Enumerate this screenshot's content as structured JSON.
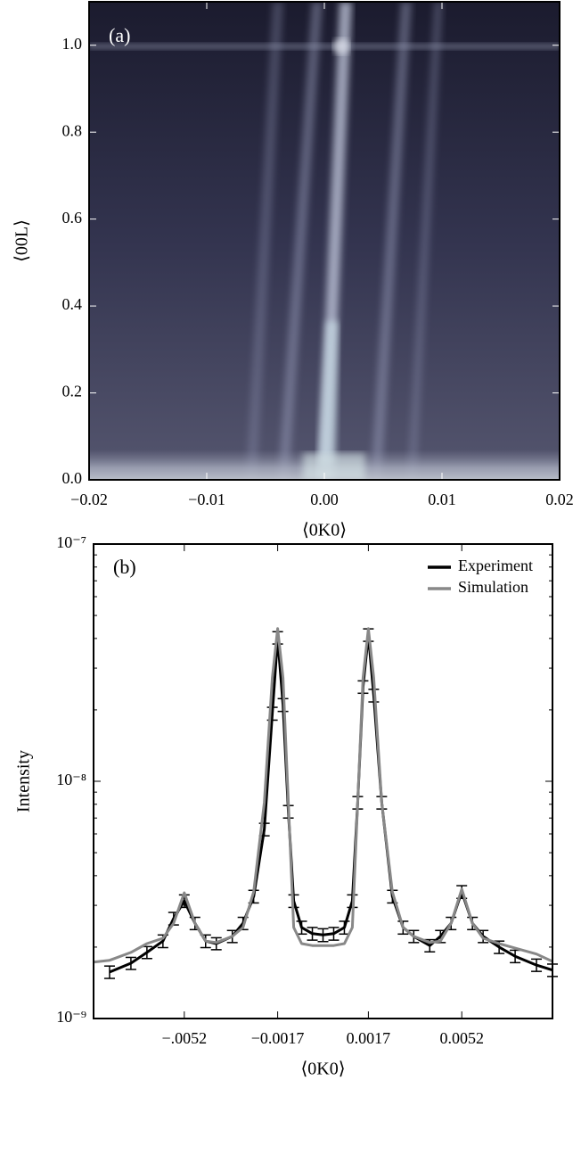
{
  "chart_data": [
    {
      "type": "image",
      "panel_label": "(a)",
      "xlabel": "⟨0K0⟩",
      "ylabel": "⟨00L⟩",
      "xlim": [
        -0.02,
        0.02
      ],
      "ylim": [
        0,
        1.1
      ],
      "xticks": [
        {
          "value": -0.02,
          "label": "−0.02"
        },
        {
          "value": -0.01,
          "label": "−0.01"
        },
        {
          "value": 0,
          "label": "0.00"
        },
        0.01,
        0.02
      ],
      "yticks": [
        {
          "value": 0,
          "label": "0.0"
        },
        0.2,
        0.4,
        0.6,
        0.8,
        {
          "value": 1,
          "label": "1.0"
        }
      ]
    },
    {
      "type": "line",
      "panel_label": "(b)",
      "xlabel": "⟨0K0⟩",
      "ylabel": "Intensity",
      "log_y": true,
      "legend": "upper right",
      "xlim": [
        -0.0086,
        0.0086
      ],
      "ylim": [
        1e-09,
        1e-07
      ],
      "xticks": [
        {
          "value": -0.0052,
          "label": "−.0052"
        },
        {
          "value": -0.0017,
          "label": "−0.0017"
        },
        0.0017,
        0.0052
      ],
      "yticks": [
        {
          "value": 1e-09,
          "label": "10⁻⁹"
        },
        {
          "value": 1e-08,
          "label": "10⁻⁸"
        },
        {
          "value": 1e-07,
          "label": "10⁻⁷"
        }
      ],
      "yminorticks": [
        2e-09,
        3e-09,
        4e-09,
        5e-09,
        6e-09,
        7e-09,
        8e-09,
        9e-09,
        2e-08,
        3e-08,
        4e-08,
        5e-08,
        6e-08,
        7e-08,
        8e-08,
        9e-08
      ],
      "series": [
        {
          "name": "Experiment",
          "color": "#000000",
          "x": [
            -0.008,
            -0.0072,
            -0.0066,
            -0.006,
            -0.0056,
            -0.0052,
            -0.0048,
            -0.0044,
            -0.004,
            -0.0034,
            -0.003,
            -0.0026,
            -0.0022,
            -0.0019,
            -0.0017,
            -0.0015,
            -0.0013,
            -0.0011,
            -0.0008,
            -0.0004,
            0,
            0.0004,
            0.0008,
            0.0011,
            0.0013,
            0.0015,
            0.0017,
            0.0019,
            0.0022,
            0.0026,
            0.003,
            0.0034,
            0.004,
            0.0044,
            0.0048,
            0.0052,
            0.0056,
            0.006,
            0.0066,
            0.0072,
            0.008,
            0.0086
          ],
          "values": [
            1.57e-09,
            1.71e-09,
            1.9e-09,
            2.12e-09,
            2.64e-09,
            3.13e-09,
            2.52e-09,
            2.12e-09,
            2.07e-09,
            2.22e-09,
            2.52e-09,
            3.27e-09,
            6.27e-09,
            1.93e-08,
            4.03e-08,
            2.1e-08,
            7.45e-09,
            3.13e-09,
            2.42e-09,
            2.28e-09,
            2.25e-09,
            2.28e-09,
            2.42e-09,
            3.13e-09,
            8.13e-09,
            2.5e-08,
            4.14e-08,
            2.3e-08,
            8.13e-09,
            3.27e-09,
            2.42e-09,
            2.22e-09,
            2.03e-09,
            2.22e-09,
            2.52e-09,
            3.42e-09,
            2.52e-09,
            2.22e-09,
            2e-09,
            1.83e-09,
            1.68e-09,
            1.6e-09
          ],
          "errors": [
            9.4e-11,
            1e-10,
            1.1e-10,
            1.3e-10,
            1.6e-10,
            1.9e-10,
            1.5e-10,
            1.3e-10,
            1.2e-10,
            1.3e-10,
            1.5e-10,
            2e-10,
            3.8e-10,
            1.2e-09,
            2.4e-09,
            1.3e-09,
            4.5e-10,
            1.9e-10,
            1.5e-10,
            1.4e-10,
            1.4e-10,
            1.4e-10,
            1.5e-10,
            1.9e-10,
            4.9e-10,
            1.5e-09,
            2.5e-09,
            1.4e-09,
            4.9e-10,
            2e-10,
            1.5e-10,
            1.3e-10,
            1.2e-10,
            1.3e-10,
            1.5e-10,
            2.1e-10,
            1.5e-10,
            1.3e-10,
            1.2e-10,
            1.1e-10,
            1e-10,
            9.6e-11
          ]
        },
        {
          "name": "Simulation",
          "color": "#888888",
          "x": [
            -0.0086,
            -0.008,
            -0.0072,
            -0.0066,
            -0.006,
            -0.0056,
            -0.0052,
            -0.0048,
            -0.0044,
            -0.004,
            -0.0034,
            -0.003,
            -0.0026,
            -0.0022,
            -0.0019,
            -0.0017,
            -0.0015,
            -0.0013,
            -0.0011,
            -0.0008,
            -0.0004,
            0,
            0.0004,
            0.0008,
            0.0011,
            0.0013,
            0.0015,
            0.0017,
            0.0019,
            0.0022,
            0.0026,
            0.003,
            0.0034,
            0.004,
            0.0044,
            0.0048,
            0.0052,
            0.0056,
            0.006,
            0.0066,
            0.0072,
            0.008,
            0.0086
          ],
          "values": [
            1.73e-09,
            1.76e-09,
            1.9e-09,
            2.07e-09,
            2.18e-09,
            2.52e-09,
            3.39e-09,
            2.52e-09,
            2.12e-09,
            2.09e-09,
            2.22e-09,
            2.42e-09,
            3.42e-09,
            8.13e-09,
            2.73e-08,
            4.4e-08,
            2.73e-08,
            8.13e-09,
            2.42e-09,
            2.07e-09,
            2.03e-09,
            2.03e-09,
            2.03e-09,
            2.07e-09,
            2.42e-09,
            8.13e-09,
            2.73e-08,
            4.4e-08,
            2.73e-08,
            8.13e-09,
            3.42e-09,
            2.42e-09,
            2.22e-09,
            2.09e-09,
            2.12e-09,
            2.52e-09,
            3.51e-09,
            2.52e-09,
            2.18e-09,
            2.07e-09,
            1.98e-09,
            1.87e-09,
            1.74e-09
          ]
        }
      ]
    }
  ]
}
